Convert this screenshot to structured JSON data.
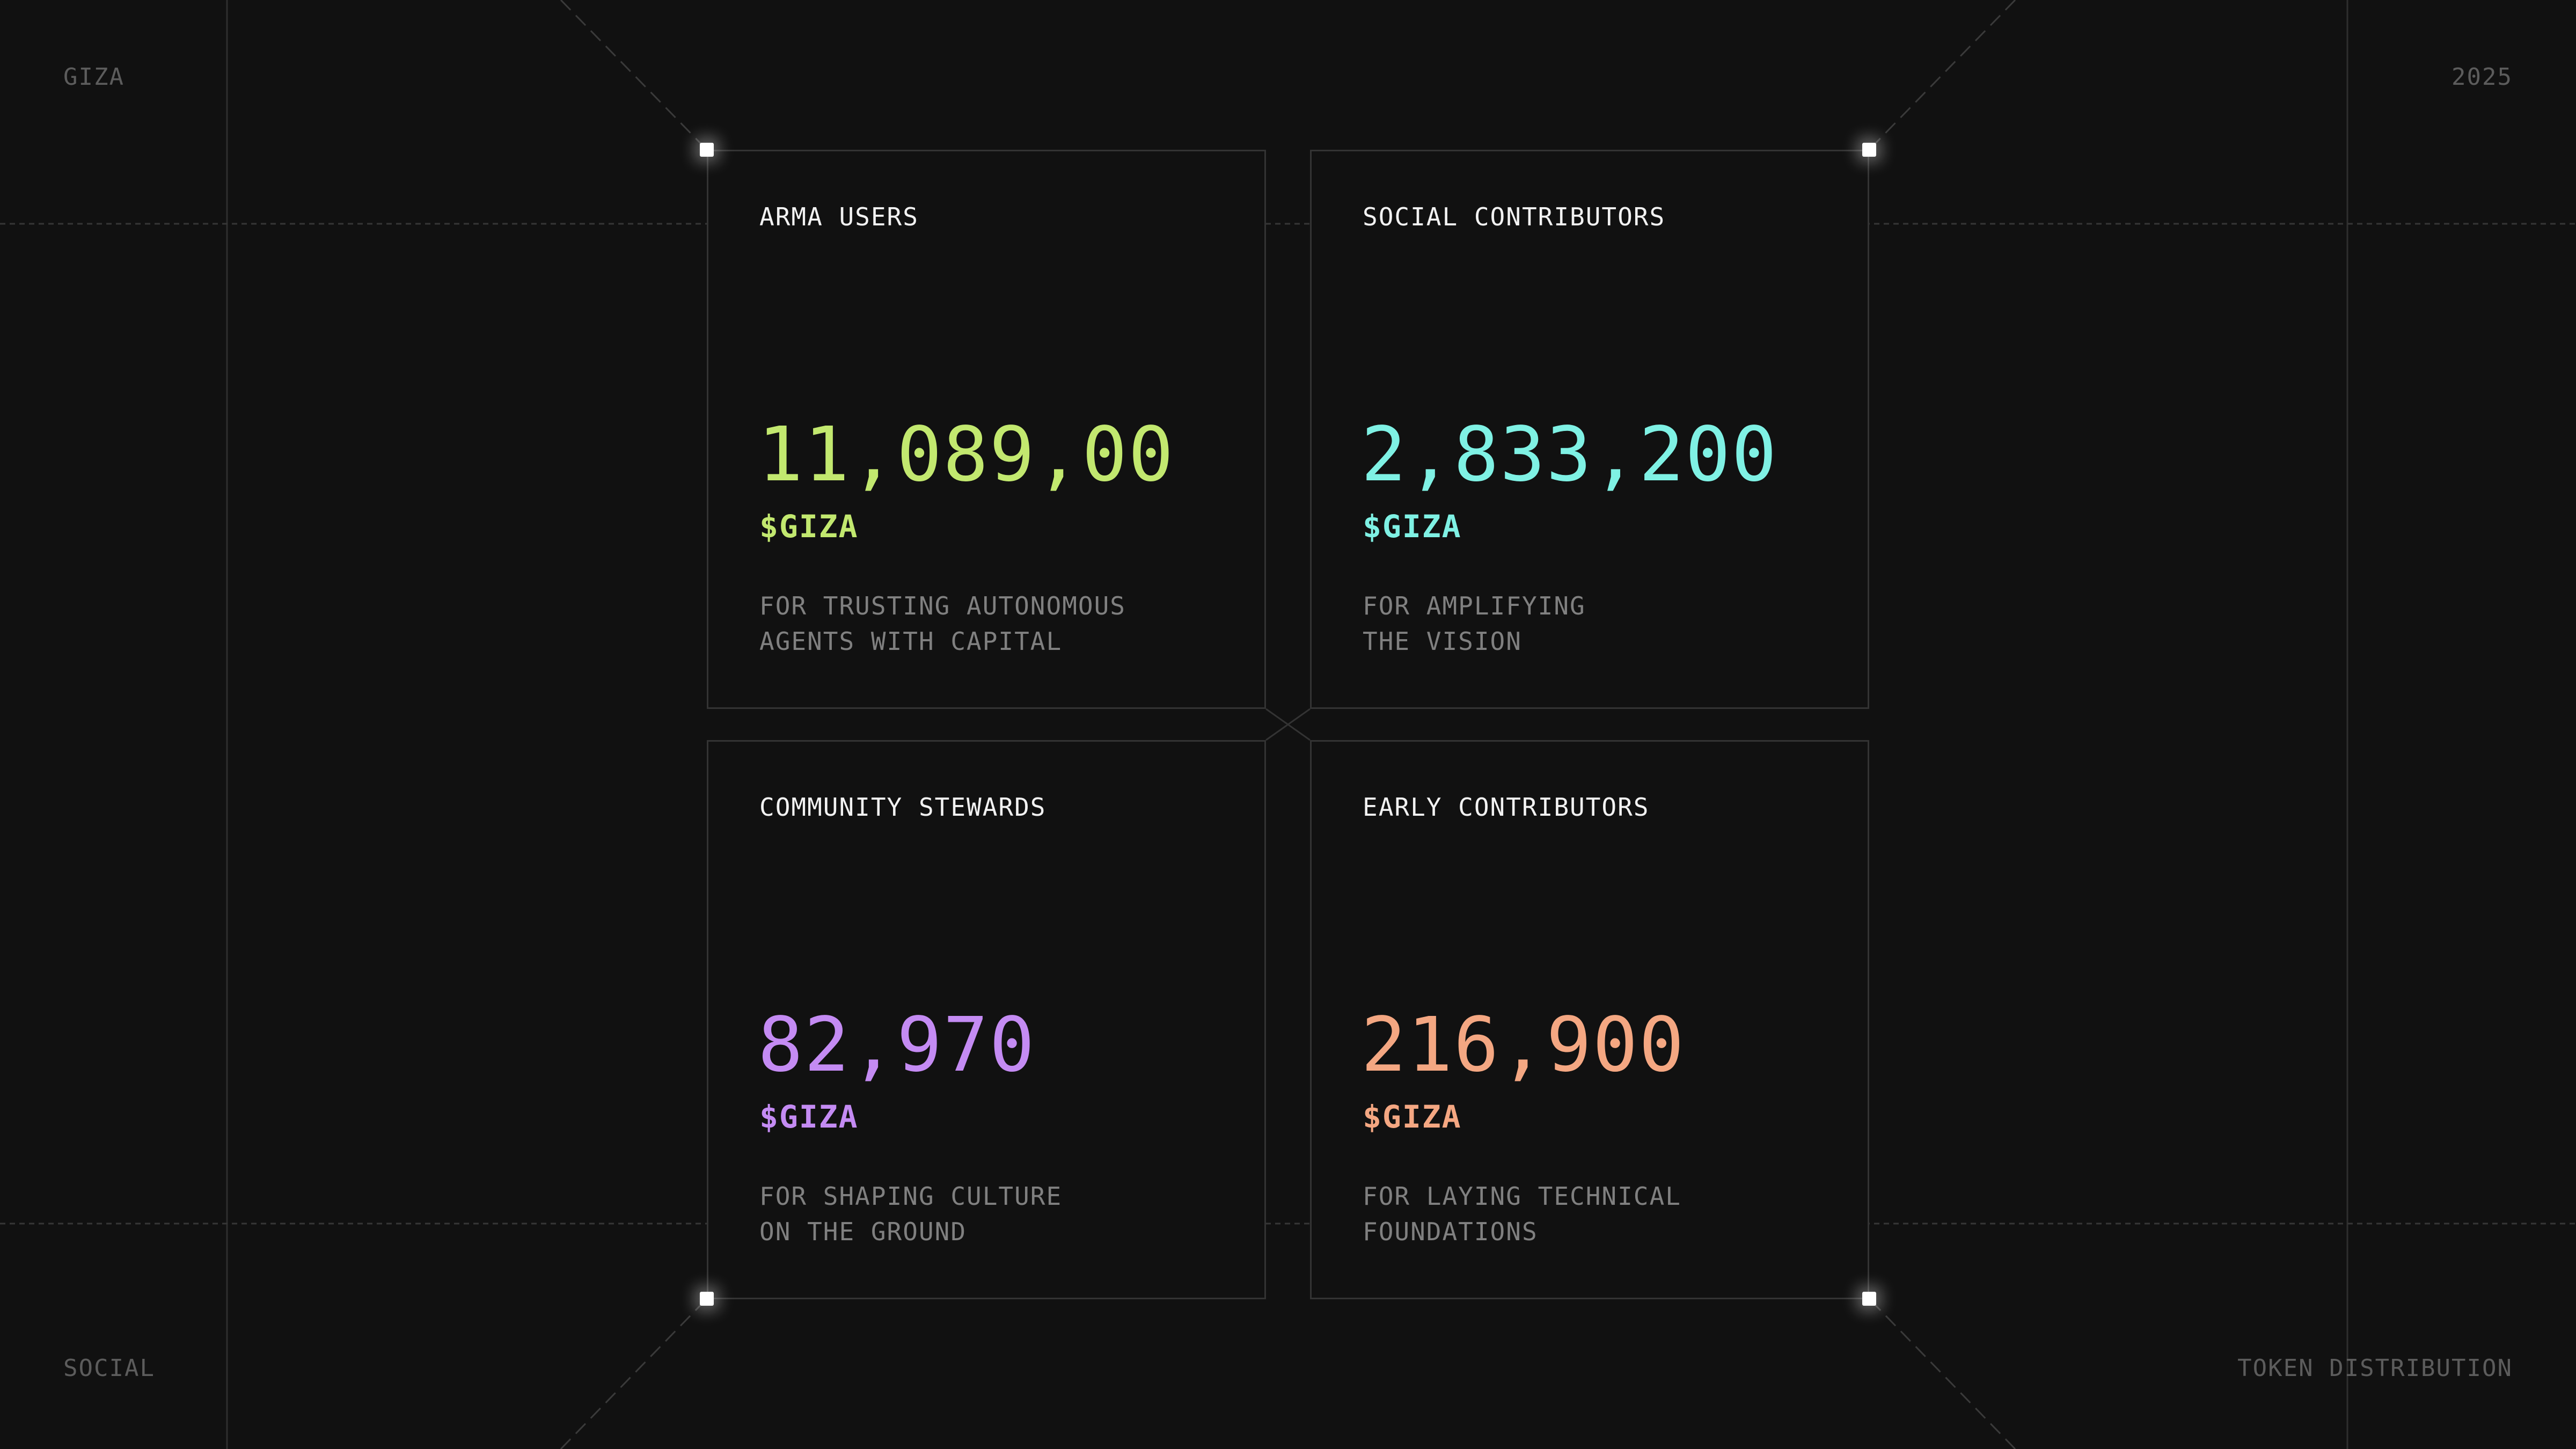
{
  "corners": {
    "top_left": "GIZA",
    "top_right": "2025",
    "bottom_left": "SOCIAL",
    "bottom_right": "TOKEN DISTRIBUTION"
  },
  "cards": [
    {
      "title": "ARMA USERS",
      "value": "11,089,00",
      "unit": "$GIZA",
      "description": [
        "FOR TRUSTING AUTONOMOUS",
        "AGENTS WITH CAPITAL"
      ],
      "accent": "#c2e86f"
    },
    {
      "title": "SOCIAL CONTRIBUTORS",
      "value": "2,833,200",
      "unit": "$GIZA",
      "description": [
        "FOR AMPLIFYING",
        "THE VISION"
      ],
      "accent": "#7ff1e4"
    },
    {
      "title": "COMMUNITY STEWARDS",
      "value": "82,970",
      "unit": "$GIZA",
      "description": [
        "FOR SHAPING CULTURE",
        "ON THE GROUND"
      ],
      "accent": "#c48bf3"
    },
    {
      "title": "EARLY CONTRIBUTORS",
      "value": "216,900",
      "unit": "$GIZA",
      "description": [
        "FOR LAYING TECHNICAL",
        "FOUNDATIONS"
      ],
      "accent": "#f4a782"
    }
  ],
  "colors": {
    "background": "#111111",
    "card_border": "#333333",
    "guide_line": "#3a3a3a",
    "muted_text": "#808080"
  }
}
